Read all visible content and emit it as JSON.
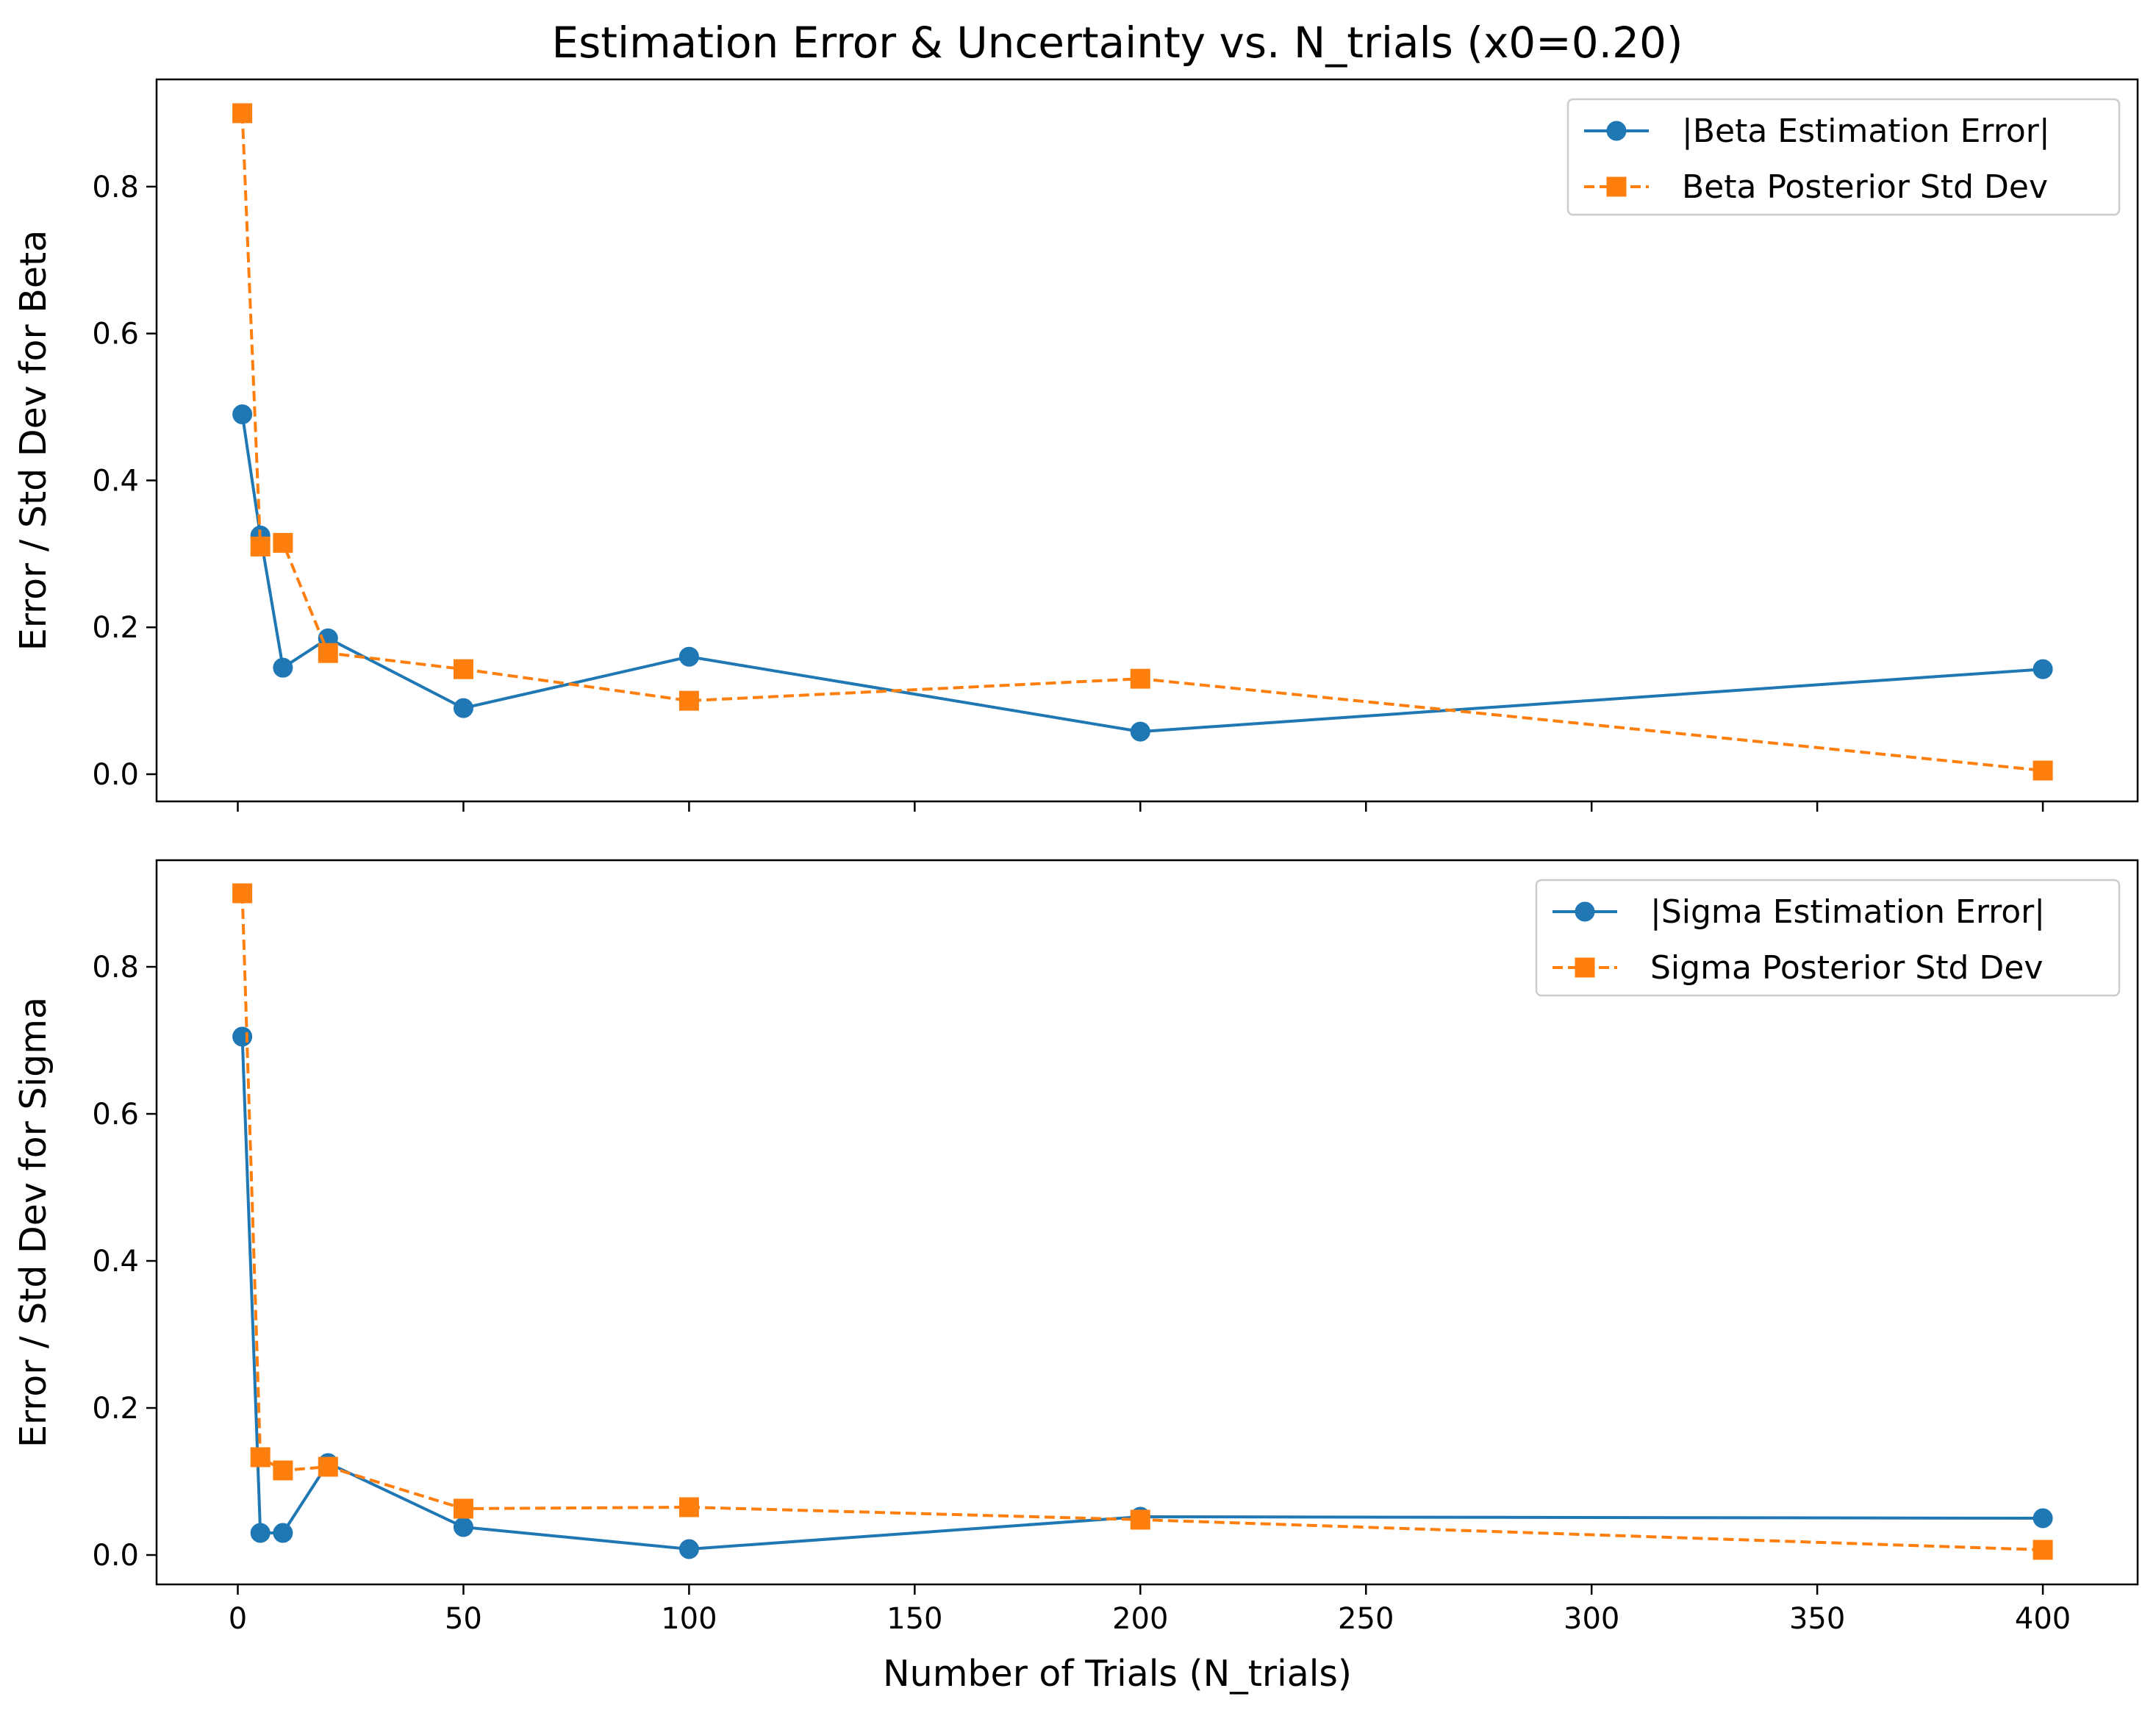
{
  "figure": {
    "title": "Estimation Error & Uncertainty vs. N_trials (x0=0.20)",
    "xlabel": "Number of Trials (N_trials)"
  },
  "colors": {
    "error": "#1f77b4",
    "std": "#ff7f0e"
  },
  "chart_data": [
    {
      "type": "line",
      "ylabel": "Error / Std Dev for Beta",
      "x": [
        1,
        5,
        10,
        20,
        50,
        100,
        200,
        400
      ],
      "xlim": [
        -18,
        421
      ],
      "ylim": [
        -0.037,
        0.946
      ],
      "xticks": [
        0,
        50,
        100,
        150,
        200,
        250,
        300,
        350,
        400
      ],
      "yticks": [
        0.0,
        0.2,
        0.4,
        0.6,
        0.8
      ],
      "xtick_labels": [
        "",
        "",
        "",
        "",
        "",
        "",
        "",
        "",
        ""
      ],
      "ytick_labels": [
        "0.0",
        "0.2",
        "0.4",
        "0.6",
        "0.8"
      ],
      "legend_position": "upper right",
      "grid": false,
      "series": [
        {
          "name": "|Beta Estimation Error|",
          "style": "solid",
          "marker": "circle",
          "color": "#1f77b4",
          "values": [
            0.49,
            0.325,
            0.145,
            0.185,
            0.09,
            0.16,
            0.058,
            0.143
          ]
        },
        {
          "name": "Beta Posterior Std Dev",
          "style": "dashed",
          "marker": "square",
          "color": "#ff7f0e",
          "values": [
            0.9,
            0.31,
            0.315,
            0.165,
            0.143,
            0.1,
            0.13,
            0.005
          ]
        }
      ]
    },
    {
      "type": "line",
      "ylabel": "Error / Std Dev for Sigma",
      "x": [
        1,
        5,
        10,
        20,
        50,
        100,
        200,
        400
      ],
      "xlim": [
        -18,
        421
      ],
      "ylim": [
        -0.04,
        0.945
      ],
      "xticks": [
        0,
        50,
        100,
        150,
        200,
        250,
        300,
        350,
        400
      ],
      "yticks": [
        0.0,
        0.2,
        0.4,
        0.6,
        0.8
      ],
      "xtick_labels": [
        "0",
        "50",
        "100",
        "150",
        "200",
        "250",
        "300",
        "350",
        "400"
      ],
      "ytick_labels": [
        "0.0",
        "0.2",
        "0.4",
        "0.6",
        "0.8"
      ],
      "legend_position": "upper right",
      "grid": false,
      "series": [
        {
          "name": "|Sigma Estimation Error|",
          "style": "solid",
          "marker": "circle",
          "color": "#1f77b4",
          "values": [
            0.705,
            0.03,
            0.03,
            0.125,
            0.038,
            0.008,
            0.052,
            0.05
          ]
        },
        {
          "name": "Sigma Posterior Std Dev",
          "style": "dashed",
          "marker": "square",
          "color": "#ff7f0e",
          "values": [
            0.9,
            0.133,
            0.115,
            0.12,
            0.063,
            0.065,
            0.048,
            0.007
          ]
        }
      ]
    }
  ]
}
